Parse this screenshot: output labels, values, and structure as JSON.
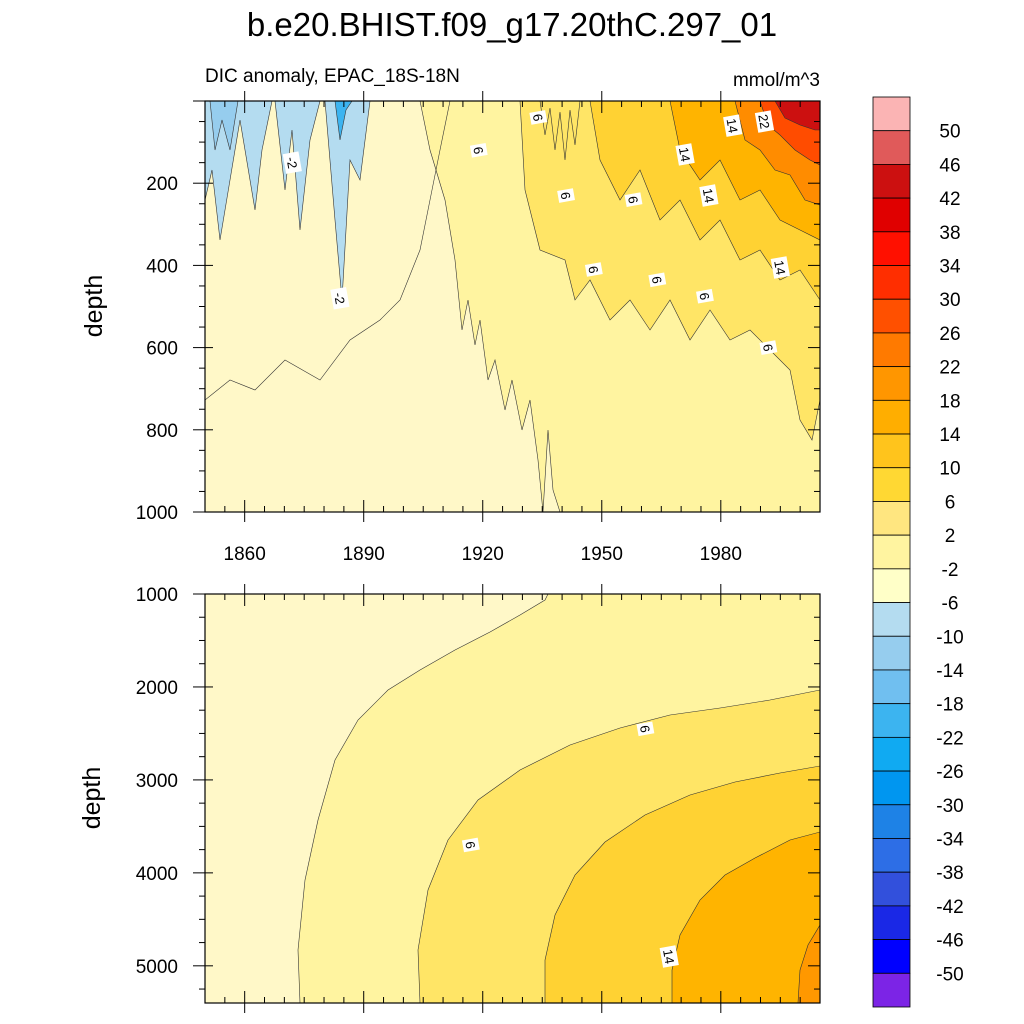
{
  "chart_data": [
    {
      "type": "heatmap",
      "panel": "upper",
      "title": "b.e20.BHIST.f09_g17.20thC.297_01",
      "left_subtitle": "DIC anomaly, EPAC_18S-18N",
      "right_subtitle": "mmol/m^3",
      "xlabel": "",
      "ylabel": "depth",
      "xlim": [
        1850,
        2005
      ],
      "ylim": [
        1000,
        0
      ],
      "x_ticks": [
        "1860",
        "1890",
        "1920",
        "1950",
        "1980"
      ],
      "y_ticks": [
        "200",
        "400",
        "600",
        "800",
        "1000"
      ],
      "contour_labels": [
        {
          "text": "-2",
          "x": 1872,
          "y": 150
        },
        {
          "text": "-2",
          "x": 1884,
          "y": 480
        },
        {
          "text": "6",
          "x": 1919,
          "y": 120
        },
        {
          "text": "6",
          "x": 1934,
          "y": 40
        },
        {
          "text": "6",
          "x": 1941,
          "y": 230
        },
        {
          "text": "6",
          "x": 1958,
          "y": 240
        },
        {
          "text": "6",
          "x": 1948,
          "y": 410
        },
        {
          "text": "6",
          "x": 1964,
          "y": 435
        },
        {
          "text": "6",
          "x": 1976,
          "y": 475
        },
        {
          "text": "6",
          "x": 1992,
          "y": 600
        },
        {
          "text": "14",
          "x": 1971,
          "y": 130
        },
        {
          "text": "14",
          "x": 1983,
          "y": 60
        },
        {
          "text": "14",
          "x": 1977,
          "y": 230
        },
        {
          "text": "14",
          "x": 1995,
          "y": 405
        },
        {
          "text": "22",
          "x": 1991,
          "y": 50
        }
      ]
    },
    {
      "type": "heatmap",
      "panel": "lower",
      "xlabel": "",
      "ylabel": "depth",
      "xlim": [
        1850,
        2005
      ],
      "ylim": [
        5400,
        1000
      ],
      "y_ticks": [
        "1000",
        "2000",
        "3000",
        "4000",
        "5000"
      ],
      "contour_labels": [
        {
          "text": "6",
          "x": 1961,
          "y": 2450
        },
        {
          "text": "6",
          "x": 1917,
          "y": 3700
        },
        {
          "text": "14",
          "x": 1967,
          "y": 4900
        }
      ]
    }
  ],
  "colorbar": {
    "units": "mmol/m^3",
    "labels": [
      "50",
      "46",
      "42",
      "38",
      "34",
      "30",
      "26",
      "22",
      "18",
      "14",
      "10",
      "6",
      "2",
      "-2",
      "-6",
      "-10",
      "-14",
      "-18",
      "-22",
      "-26",
      "-30",
      "-34",
      "-38",
      "-42",
      "-46",
      "-50"
    ],
    "colors": [
      "#fbb4b4",
      "#e05a5a",
      "#cc1010",
      "#e00000",
      "#ff1000",
      "#ff2e00",
      "#ff5000",
      "#ff7a00",
      "#ff9600",
      "#ffae00",
      "#ffc41c",
      "#ffd833",
      "#ffe680",
      "#fff4a0",
      "#ffffc8",
      "#b4dcf0",
      "#96cdee",
      "#70bff0",
      "#3cb4f0",
      "#10aaf2",
      "#0096f0",
      "#1e82e6",
      "#2d6ee6",
      "#3250dc",
      "#1a28e6",
      "#0000ff",
      "#7c24e6"
    ]
  }
}
